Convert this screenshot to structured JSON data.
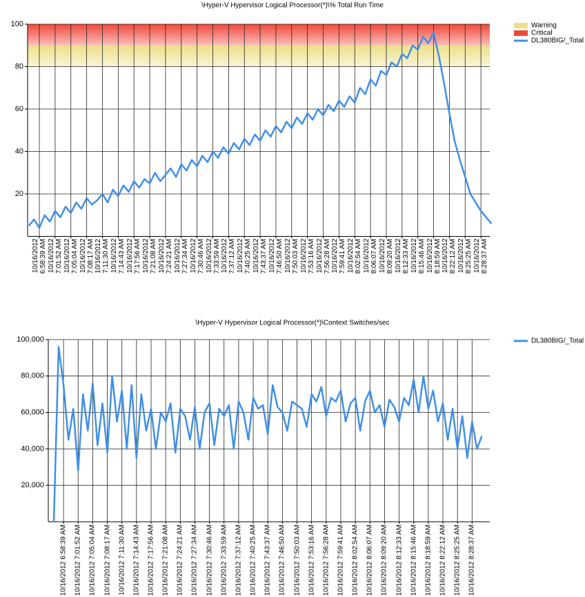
{
  "chart_data": [
    {
      "type": "line",
      "title": "\\Hyper-V Hypervisor Logical Processor(*)\\% Total Run Time",
      "ylim": [
        0,
        100
      ],
      "yticks": [
        20,
        40,
        60,
        80,
        100
      ],
      "grid": true,
      "legend": "right",
      "bands": [
        {
          "name": "Warning",
          "color": "#ece08a",
          "range": [
            80,
            90
          ]
        },
        {
          "name": "Critical",
          "color": "#f0483a",
          "range": [
            90,
            100
          ]
        }
      ],
      "categories": [
        null,
        null,
        "10/16/2012\n6:58:39 AM",
        null,
        null,
        "10/16/2012\n7:01:52 AM",
        null,
        null,
        "10/16/2012\n7:05:04 AM",
        null,
        null,
        "10/16/2012\n7:08:17 AM",
        null,
        null,
        "10/16/2012\n7:11:30 AM",
        null,
        null,
        "10/16/2012\n7:14:43 AM",
        null,
        null,
        "10/16/2012\n7:17:56 AM",
        null,
        null,
        "10/16/2012\n7:21:08 AM",
        null,
        null,
        "10/16/2012\n7:24:21 AM",
        null,
        null,
        "10/16/2012\n7:27:34 AM",
        null,
        null,
        "10/16/2012\n7:30:46 AM",
        null,
        null,
        "10/16/2012\n7:33:59 AM",
        null,
        null,
        "10/16/2012\n7:37:12 AM",
        null,
        null,
        "10/16/2012\n7:40:25 AM",
        null,
        null,
        "10/16/2012\n7:43:37 AM",
        null,
        null,
        "10/16/2012\n7:46:50 AM",
        null,
        null,
        "10/16/2012\n7:50:03 AM",
        null,
        null,
        "10/16/2012\n7:53:16 AM",
        null,
        null,
        "10/16/2012\n7:56:28 AM",
        null,
        null,
        "10/16/2012\n7:59:41 AM",
        null,
        null,
        "10/16/2012\n8:02:54 AM",
        null,
        null,
        "10/16/2012\n8:06:07 AM",
        null,
        null,
        "10/16/2012\n8:09:20 AM",
        null,
        null,
        "10/16/2012\n8:12:33 AM",
        null,
        null,
        "10/16/2012\n8:15:46 AM",
        null,
        null,
        "10/16/2012\n8:18:59 AM",
        null,
        null,
        "10/16/2012\n8:22:12 AM",
        null,
        null,
        "10/16/2012\n8:25:25 AM",
        null,
        null,
        "10/16/2012\n8:28:37 AM",
        null,
        null
      ],
      "series": [
        {
          "name": "DL380BIG/_Total",
          "color": "#3f8fe8",
          "values": [
            5,
            8,
            4,
            10,
            7,
            12,
            9,
            14,
            11,
            16,
            13,
            18,
            15,
            17,
            20,
            16,
            22,
            19,
            24,
            21,
            26,
            23,
            27,
            25,
            30,
            26,
            29,
            32,
            28,
            34,
            31,
            36,
            33,
            38,
            35,
            40,
            37,
            42,
            39,
            44,
            41,
            46,
            43,
            48,
            45,
            50,
            47,
            52,
            49,
            54,
            51,
            56,
            53,
            58,
            55,
            60,
            57,
            62,
            59,
            64,
            61,
            66,
            63,
            70,
            67,
            74,
            71,
            78,
            76,
            82,
            80,
            86,
            84,
            90,
            88,
            94,
            91,
            96,
            85,
            72,
            58,
            45,
            36,
            28,
            20,
            16,
            12,
            9,
            6
          ]
        }
      ]
    },
    {
      "type": "line",
      "title": "\\Hyper-V Hypervisor Logical Processor(*)\\Context Switches/sec",
      "ylim": [
        0,
        100000
      ],
      "yticks": [
        {
          "value": 20000,
          "label": "20,000"
        },
        {
          "value": 40000,
          "label": "40,000"
        },
        {
          "value": 60000,
          "label": "60,000"
        },
        {
          "value": 80000,
          "label": "80,000"
        },
        {
          "value": 100000,
          "label": "100,000"
        }
      ],
      "grid": true,
      "legend": "right",
      "categories": [
        null,
        null,
        "10/16/2012 6:58:39 AM",
        null,
        null,
        "10/16/2012 7:01:52 AM",
        null,
        null,
        "10/16/2012 7:05:04 AM",
        null,
        null,
        "10/16/2012 7:08:17 AM",
        null,
        null,
        "10/16/2012 7:11:30 AM",
        null,
        null,
        "10/16/2012 7:14:43 AM",
        null,
        null,
        "10/16/2012 7:17:56 AM",
        null,
        null,
        "10/16/2012 7:21:08 AM",
        null,
        null,
        "10/16/2012 7:24:21 AM",
        null,
        null,
        "10/16/2012 7:27:34 AM",
        null,
        null,
        "10/16/2012 7:30:46 AM",
        null,
        null,
        "10/16/2012 7:33:59 AM",
        null,
        null,
        "10/16/2012 7:37:12 AM",
        null,
        null,
        "10/16/2012 7:40:25 AM",
        null,
        null,
        "10/16/2012 7:43:37 AM",
        null,
        null,
        "10/16/2012 7:46:50 AM",
        null,
        null,
        "10/16/2012 7:50:03 AM",
        null,
        null,
        "10/16/2012 7:53:16 AM",
        null,
        null,
        "10/16/2012 7:56:28 AM",
        null,
        null,
        "10/16/2012 7:59:41 AM",
        null,
        null,
        "10/16/2012 8:02:54 AM",
        null,
        null,
        "10/16/2012 8:06:07 AM",
        null,
        null,
        "10/16/2012 8:09:20 AM",
        null,
        null,
        "10/16/2012 8:12:33 AM",
        null,
        null,
        "10/16/2012 8:15:46 AM",
        null,
        null,
        "10/16/2012 8:18:59 AM",
        null,
        null,
        "10/16/2012 8:22:12 AM",
        null,
        null,
        "10/16/2012 8:25:25 AM",
        null,
        null,
        "10/16/2012 8:28:37 AM",
        null,
        null
      ],
      "series": [
        {
          "name": "DL380BIG/_Total",
          "color": "#3f8fe8",
          "values": [
            0,
            96000,
            75000,
            45000,
            62000,
            28000,
            70000,
            50000,
            76000,
            42000,
            65000,
            38000,
            80000,
            55000,
            72000,
            40000,
            75000,
            35000,
            70000,
            50000,
            62000,
            40000,
            60000,
            55000,
            65000,
            38000,
            62000,
            58000,
            45000,
            63000,
            40000,
            60000,
            65000,
            42000,
            62000,
            58000,
            64000,
            40000,
            66000,
            60000,
            45000,
            68000,
            62000,
            64000,
            48000,
            75000,
            63000,
            60000,
            50000,
            66000,
            64000,
            62000,
            52000,
            70000,
            66000,
            74000,
            58000,
            68000,
            66000,
            72000,
            55000,
            65000,
            68000,
            50000,
            66000,
            72000,
            60000,
            64000,
            52000,
            67000,
            63000,
            55000,
            68000,
            64000,
            78000,
            60000,
            80000,
            62000,
            72000,
            55000,
            65000,
            45000,
            62000,
            40000,
            58000,
            35000,
            55000,
            40000,
            47000
          ]
        }
      ]
    }
  ]
}
